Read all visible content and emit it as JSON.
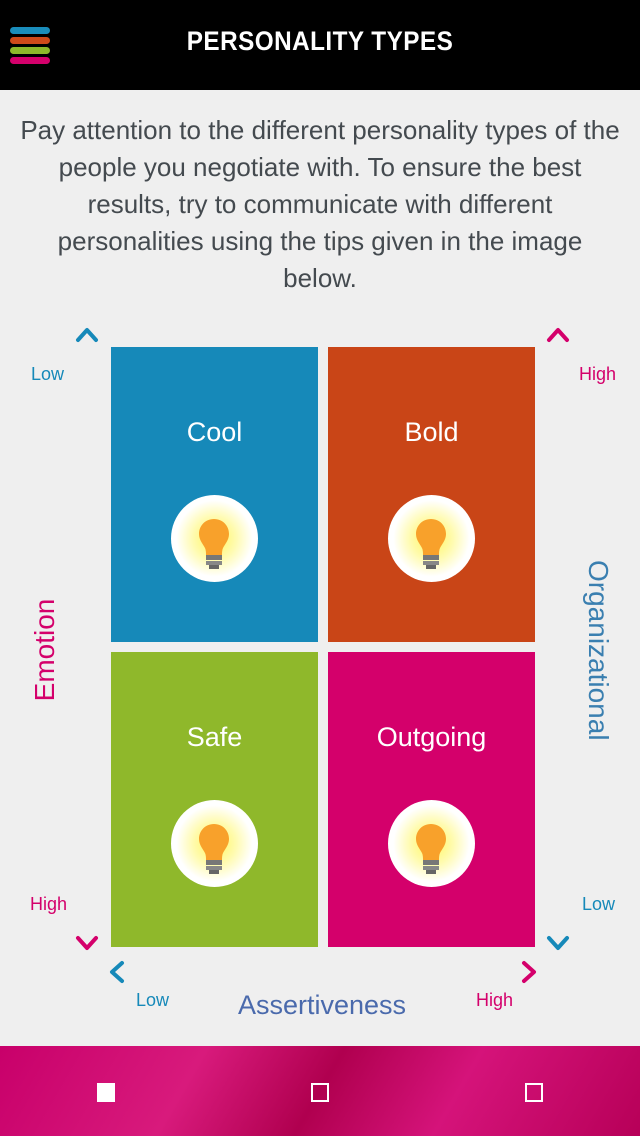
{
  "header": {
    "title": "PERSONALITY TYPES",
    "menu_icon": "hamburger-menu-icon",
    "menu_colors": [
      "#1a8dbb",
      "#cf4a1a",
      "#8db82a",
      "#d4006b"
    ]
  },
  "intro": "Pay attention to the different personality types of the people you negotiate with. To ensure the best results, try to communicate with different personalities using the tips given in the image below.",
  "matrix": {
    "quadrants": [
      {
        "label": "Cool",
        "color": "#1689b9",
        "icon": "lightbulb-icon"
      },
      {
        "label": "Bold",
        "color": "#c94517",
        "icon": "lightbulb-icon"
      },
      {
        "label": "Safe",
        "color": "#8fb82b",
        "icon": "lightbulb-icon"
      },
      {
        "label": "Outgoing",
        "color": "#d4006b",
        "icon": "lightbulb-icon"
      }
    ],
    "left_axis": {
      "label": "Emotion",
      "top": "Low",
      "bottom": "High"
    },
    "right_axis": {
      "label": "Organizational",
      "top": "High",
      "bottom": "Low"
    },
    "bottom_axis": {
      "label": "Assertiveness",
      "left": "Low",
      "right": "High"
    },
    "colors": {
      "blue": "#1689b9",
      "pink": "#d4006b"
    }
  },
  "pager": {
    "pages": 3,
    "active": 1
  }
}
